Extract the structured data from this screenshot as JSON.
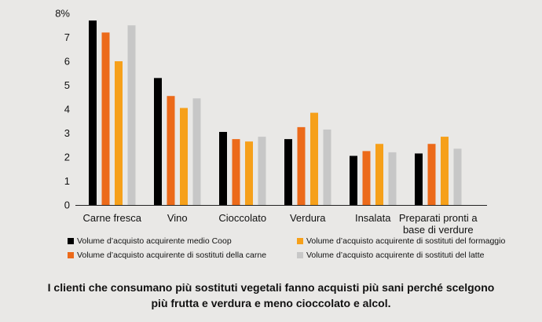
{
  "chart_data": {
    "type": "bar",
    "categories": [
      "Carne fresca",
      "Vino",
      "Cioccolato",
      "Verdura",
      "Insalata",
      "Preparati pronti a base di verdure"
    ],
    "category_lines": [
      [
        "Carne fresca"
      ],
      [
        "Vino"
      ],
      [
        "Cioccolato"
      ],
      [
        "Verdura"
      ],
      [
        "Insalata"
      ],
      [
        "Preparati pronti a",
        "base di verdure"
      ]
    ],
    "series": [
      {
        "name": "Volume d’acquisto acquirente medio Coop",
        "color": "#000000",
        "values": [
          7.7,
          5.3,
          3.05,
          2.75,
          2.05,
          2.15
        ]
      },
      {
        "name": "Volume d’acquisto acquirente di sostituti della carne",
        "color": "#ec6a1a",
        "values": [
          7.2,
          4.55,
          2.75,
          3.25,
          2.25,
          2.55
        ]
      },
      {
        "name": "Volume d’acquisto acquirente di sostituti del formaggio",
        "color": "#f6a01a",
        "values": [
          6.0,
          4.05,
          2.65,
          3.85,
          2.55,
          2.85
        ]
      },
      {
        "name": "Volume d’acquisto acquirente di sostituti del latte",
        "color": "#c7c7c7",
        "values": [
          7.5,
          4.45,
          2.85,
          3.15,
          2.2,
          2.35
        ]
      }
    ],
    "yticks": [
      "0",
      "1",
      "2",
      "3",
      "4",
      "5",
      "6",
      "7",
      "8%"
    ],
    "ylim": [
      0,
      8
    ],
    "grid": false,
    "legend_placement": "bottom"
  },
  "caption": {
    "line1": "I clienti che consumano più sostituti vegetali fanno acquisti più sani perché scelgono",
    "line2": "più frutta e verdura e meno cioccolato e alcol."
  }
}
